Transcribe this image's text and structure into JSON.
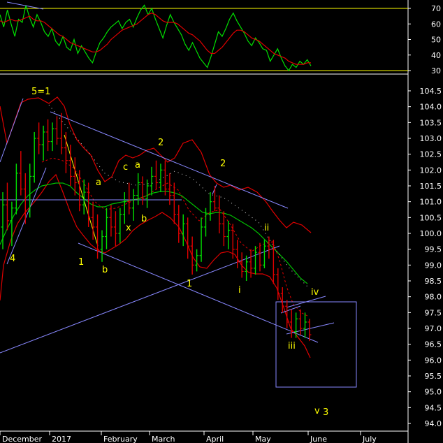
{
  "chart_data": [
    {
      "type": "line",
      "panel": "RSI indicator",
      "ylim": [
        25,
        75
      ],
      "ticks": [
        30,
        40,
        50,
        60,
        70
      ],
      "levels": [
        70,
        30
      ],
      "colors": {
        "rsi": "#00e000",
        "signal": "#e00000",
        "levels": "#ffff00"
      },
      "series": [
        {
          "role": "rsi",
          "values": [
            66,
            58,
            69,
            60,
            52,
            63,
            61,
            72,
            64,
            58,
            66,
            61,
            55,
            52,
            57,
            49,
            46,
            52,
            45,
            43,
            50,
            41,
            46,
            42,
            38,
            35,
            42,
            48,
            51,
            55,
            58,
            60,
            62,
            57,
            61,
            63,
            58,
            64,
            69,
            72,
            66,
            70,
            63,
            57,
            51,
            59,
            66,
            61,
            57,
            53,
            47,
            43,
            48,
            43,
            38,
            35,
            32,
            39,
            47,
            55,
            52,
            57,
            63,
            67,
            62,
            58,
            54,
            49,
            46,
            51,
            48,
            44,
            43,
            36,
            40,
            44,
            38,
            33,
            30,
            34,
            32,
            36,
            34,
            37,
            33
          ]
        },
        {
          "role": "signal",
          "values": [
            62,
            61,
            62,
            63,
            62,
            62,
            63,
            64,
            65,
            63,
            62,
            62,
            61,
            59,
            57,
            55,
            53,
            52,
            50,
            48,
            47,
            46,
            45,
            44,
            43,
            42,
            42,
            43,
            45,
            47,
            50,
            52,
            54,
            56,
            57,
            58,
            59,
            60,
            62,
            64,
            66,
            67,
            66,
            64,
            62,
            61,
            61,
            61,
            60,
            58,
            56,
            54,
            53,
            51,
            49,
            46,
            43,
            41,
            41,
            43,
            45,
            48,
            51,
            54,
            56,
            56,
            55,
            53,
            51,
            50,
            49,
            47,
            45,
            43,
            41,
            40,
            39,
            38,
            36,
            35,
            34,
            34,
            34,
            35,
            35
          ]
        }
      ]
    },
    {
      "type": "candlestick",
      "panel": "price",
      "ylim": [
        93.8,
        105.0
      ],
      "ticks": [
        "94.0",
        "94.5",
        "95.0",
        "95.5",
        "96.0",
        "96.5",
        "97.0",
        "97.5",
        "98.0",
        "98.5",
        "99.0",
        "99.5",
        "100.0",
        "100.5",
        "101.0",
        "101.5",
        "102.0",
        "102.5",
        "103.0",
        "103.5",
        "104.0",
        "104.5"
      ],
      "x_labels": [
        "December",
        "2017",
        "February",
        "March",
        "April",
        "May",
        "June",
        "July"
      ],
      "colors": {
        "up": "#00e000",
        "down": "#e00000",
        "envelope": "#e00000",
        "ma": "#00c000",
        "trendline": "#8888ff",
        "text": "#ffff00",
        "box": "#8888ff"
      },
      "bars": [
        [
          100.2,
          101.3,
          99.5,
          100.9
        ],
        [
          100.9,
          101.6,
          100.1,
          100.4
        ],
        [
          100.4,
          101.0,
          99.6,
          100.8
        ],
        [
          100.8,
          102.2,
          100.6,
          101.9
        ],
        [
          101.9,
          102.6,
          101.2,
          101.4
        ],
        [
          101.4,
          101.9,
          100.3,
          100.7
        ],
        [
          100.7,
          102.2,
          100.5,
          101.8
        ],
        [
          101.8,
          103.2,
          101.6,
          103.0
        ],
        [
          103.0,
          103.5,
          102.5,
          102.8
        ],
        [
          102.8,
          103.4,
          102.3,
          103.2
        ],
        [
          103.2,
          103.6,
          102.6,
          102.9
        ],
        [
          102.9,
          103.5,
          102.6,
          103.3
        ],
        [
          103.3,
          103.7,
          102.8,
          103.0
        ],
        [
          103.0,
          103.8,
          102.5,
          102.7
        ],
        [
          102.7,
          103.2,
          101.9,
          102.3
        ],
        [
          102.3,
          102.8,
          101.5,
          101.8
        ],
        [
          101.8,
          102.4,
          101.2,
          101.6
        ],
        [
          101.6,
          102.0,
          100.7,
          100.9
        ],
        [
          100.9,
          101.7,
          100.6,
          101.3
        ],
        [
          101.3,
          101.6,
          100.2,
          100.5
        ],
        [
          100.5,
          101.0,
          99.8,
          100.2
        ],
        [
          100.2,
          100.6,
          99.2,
          99.5
        ],
        [
          99.5,
          100.1,
          99.1,
          99.9
        ],
        [
          99.9,
          100.8,
          99.5,
          100.5
        ],
        [
          100.5,
          100.9,
          99.9,
          100.2
        ],
        [
          100.2,
          100.7,
          99.6,
          100.0
        ],
        [
          100.0,
          100.8,
          99.7,
          100.6
        ],
        [
          100.6,
          101.3,
          100.3,
          101.0
        ],
        [
          101.0,
          101.6,
          100.6,
          100.8
        ],
        [
          100.8,
          101.4,
          100.4,
          101.2
        ],
        [
          101.2,
          101.9,
          100.9,
          101.6
        ],
        [
          101.6,
          101.8,
          100.9,
          101.1
        ],
        [
          101.1,
          101.7,
          100.8,
          101.5
        ],
        [
          101.5,
          102.1,
          101.2,
          101.8
        ],
        [
          101.8,
          102.3,
          101.4,
          101.6
        ],
        [
          101.6,
          102.2,
          101.3,
          102.0
        ],
        [
          102.0,
          102.3,
          101.2,
          101.4
        ],
        [
          101.4,
          101.9,
          100.9,
          101.2
        ],
        [
          101.2,
          101.6,
          100.3,
          100.6
        ],
        [
          100.6,
          100.9,
          99.7,
          100.0
        ],
        [
          100.0,
          100.6,
          99.6,
          100.3
        ],
        [
          100.3,
          100.5,
          99.2,
          99.6
        ],
        [
          99.6,
          99.9,
          98.7,
          99.0
        ],
        [
          99.0,
          99.5,
          98.8,
          99.3
        ],
        [
          99.3,
          100.5,
          99.1,
          100.2
        ],
        [
          100.2,
          100.8,
          99.9,
          100.6
        ],
        [
          100.6,
          101.3,
          100.4,
          101.0
        ],
        [
          101.0,
          101.5,
          100.7,
          100.8
        ],
        [
          100.8,
          101.2,
          100.0,
          100.3
        ],
        [
          100.3,
          100.7,
          99.6,
          99.9
        ],
        [
          99.9,
          100.4,
          99.5,
          100.1
        ],
        [
          100.1,
          100.3,
          99.2,
          99.5
        ],
        [
          99.5,
          99.8,
          98.9,
          99.1
        ],
        [
          99.1,
          99.4,
          98.6,
          98.8
        ],
        [
          98.8,
          99.3,
          98.5,
          99.1
        ],
        [
          99.1,
          99.5,
          98.6,
          98.9
        ],
        [
          98.9,
          99.6,
          98.7,
          99.4
        ],
        [
          99.4,
          99.7,
          98.8,
          99.0
        ],
        [
          99.0,
          99.8,
          98.9,
          99.6
        ],
        [
          99.6,
          99.9,
          99.2,
          99.5
        ],
        [
          99.5,
          99.8,
          98.4,
          98.7
        ],
        [
          98.7,
          98.9,
          97.9,
          98.1
        ],
        [
          98.1,
          98.3,
          97.5,
          97.7
        ],
        [
          97.7,
          97.9,
          97.0,
          97.2
        ],
        [
          97.2,
          97.6,
          96.7,
          96.9
        ],
        [
          96.9,
          97.5,
          96.7,
          97.3
        ],
        [
          97.3,
          97.6,
          96.8,
          97.0
        ],
        [
          97.0,
          97.5,
          96.7,
          97.2
        ],
        [
          97.2,
          97.3,
          96.6,
          96.8
        ]
      ]
    }
  ],
  "annotations": {
    "wave_5_1": "5=1",
    "wave_2a": "2",
    "wave_2b": "2",
    "wave_4": "4",
    "wave_1a": "1",
    "wave_1b": "1",
    "wave_a1": "a",
    "wave_a2": "a",
    "wave_b1": "b",
    "wave_b2": "b",
    "wave_c": "c",
    "wave_x": "x",
    "wave_i": "i",
    "wave_ii": "ii",
    "wave_iii": "iii",
    "wave_iv": "iv",
    "wave_v": "v",
    "wave_3": "3"
  }
}
